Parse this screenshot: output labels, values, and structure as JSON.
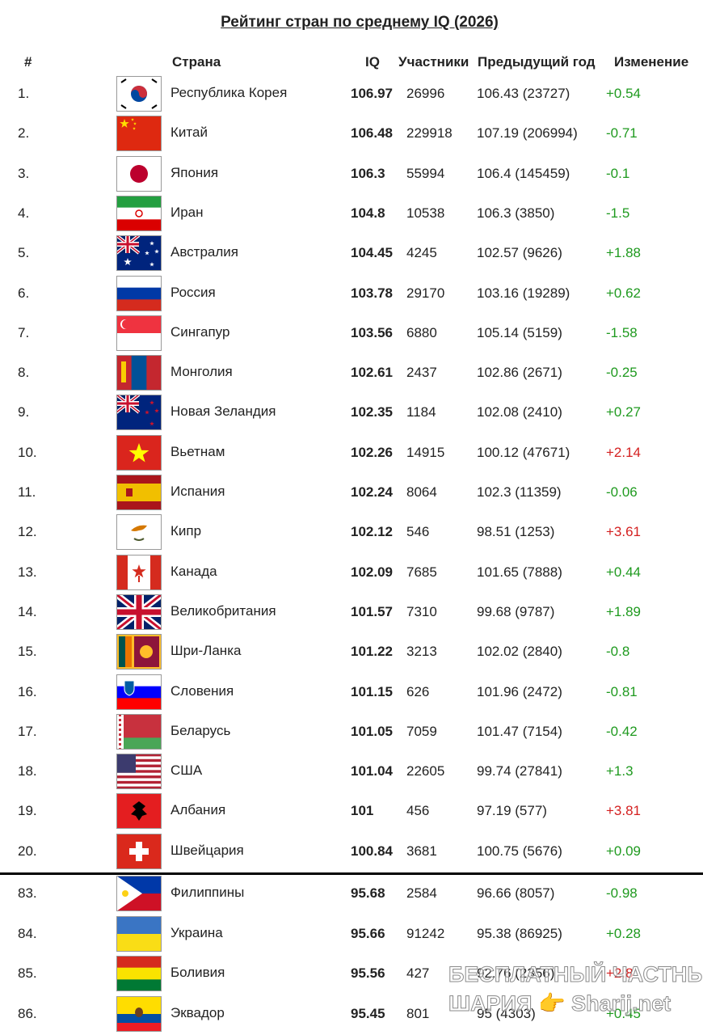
{
  "title": "Рейтинг стран по среднему IQ (2026)",
  "table": {
    "header": [
      "#",
      "Страна",
      "IQ",
      "Участники",
      "Предыдущий год",
      "Изменение"
    ],
    "rows": [
      {
        "rank": "1.",
        "country": "Республика Корея",
        "iq": "106.97",
        "participants": "26996",
        "previous": "106.43 (23727)",
        "change": "+0.54",
        "change_color": "#1f9a1f"
      },
      {
        "rank": "2.",
        "country": "Китай",
        "iq": "106.48",
        "participants": "229918",
        "previous": "107.19 (206994)",
        "change": "-0.71",
        "change_color": "#1f9a1f"
      },
      {
        "rank": "3.",
        "country": "Япония",
        "iq": "106.3",
        "participants": "55994",
        "previous": "106.4 (145459)",
        "change": "-0.1",
        "change_color": "#1f9a1f"
      },
      {
        "rank": "4.",
        "country": "Иран",
        "iq": "104.8",
        "participants": "10538",
        "previous": "106.3 (3850)",
        "change": "-1.5",
        "change_color": "#1f9a1f"
      },
      {
        "rank": "5.",
        "country": "Австралия",
        "iq": "104.45",
        "participants": "4245",
        "previous": "102.57 (9626)",
        "change": "+1.88",
        "change_color": "#1f9a1f"
      },
      {
        "rank": "6.",
        "country": "Россия",
        "iq": "103.78",
        "participants": "29170",
        "previous": "103.16 (19289)",
        "change": "+0.62",
        "change_color": "#1f9a1f"
      },
      {
        "rank": "7.",
        "country": "Сингапур",
        "iq": "103.56",
        "participants": "6880",
        "previous": "105.14 (5159)",
        "change": "-1.58",
        "change_color": "#1f9a1f"
      },
      {
        "rank": "8.",
        "country": "Монголия",
        "iq": "102.61",
        "participants": "2437",
        "previous": "102.86 (2671)",
        "change": "-0.25",
        "change_color": "#1f9a1f"
      },
      {
        "rank": "9.",
        "country": "Новая Зеландия",
        "iq": "102.35",
        "participants": "1184",
        "previous": "102.08 (2410)",
        "change": "+0.27",
        "change_color": "#1f9a1f"
      },
      {
        "rank": "10.",
        "country": "Вьетнам",
        "iq": "102.26",
        "participants": "14915",
        "previous": "100.12 (47671)",
        "change": "+2.14",
        "change_color": "#d42020"
      },
      {
        "rank": "11.",
        "country": "Испания",
        "iq": "102.24",
        "participants": "8064",
        "previous": "102.3 (11359)",
        "change": "-0.06",
        "change_color": "#1f9a1f"
      },
      {
        "rank": "12.",
        "country": "Кипр",
        "iq": "102.12",
        "participants": "546",
        "previous": "98.51 (1253)",
        "change": "+3.61",
        "change_color": "#d42020"
      },
      {
        "rank": "13.",
        "country": "Канада",
        "iq": "102.09",
        "participants": "7685",
        "previous": "101.65 (7888)",
        "change": "+0.44",
        "change_color": "#1f9a1f"
      },
      {
        "rank": "14.",
        "country": "Великобритания",
        "iq": "101.57",
        "participants": "7310",
        "previous": "99.68 (9787)",
        "change": "+1.89",
        "change_color": "#1f9a1f"
      },
      {
        "rank": "15.",
        "country": "Шри-Ланка",
        "iq": "101.22",
        "participants": "3213",
        "previous": "102.02 (2840)",
        "change": "-0.8",
        "change_color": "#1f9a1f"
      },
      {
        "rank": "16.",
        "country": "Словения",
        "iq": "101.15",
        "participants": "626",
        "previous": "101.96 (2472)",
        "change": "-0.81",
        "change_color": "#1f9a1f"
      },
      {
        "rank": "17.",
        "country": "Беларусь",
        "iq": "101.05",
        "participants": "7059",
        "previous": "101.47 (7154)",
        "change": "-0.42",
        "change_color": "#1f9a1f"
      },
      {
        "rank": "18.",
        "country": "США",
        "iq": "101.04",
        "participants": "22605",
        "previous": "99.74 (27841)",
        "change": "+1.3",
        "change_color": "#1f9a1f"
      },
      {
        "rank": "19.",
        "country": "Албания",
        "iq": "101",
        "participants": "456",
        "previous": "97.19 (577)",
        "change": "+3.81",
        "change_color": "#d42020"
      },
      {
        "rank": "20.",
        "country": "Швейцария",
        "iq": "100.84",
        "participants": "3681",
        "previous": "100.75 (5676)",
        "change": "+0.09",
        "change_color": "#1f9a1f"
      },
      {
        "rank": "83.",
        "country": "Филиппины",
        "iq": "95.68",
        "participants": "2584",
        "previous": "96.66 (8057)",
        "change": "-0.98",
        "change_color": "#1f9a1f"
      },
      {
        "rank": "84.",
        "country": "Украина",
        "iq": "95.66",
        "participants": "91242",
        "previous": "95.38 (86925)",
        "change": "+0.28",
        "change_color": "#1f9a1f"
      },
      {
        "rank": "85.",
        "country": "Боливия",
        "iq": "95.56",
        "participants": "427",
        "previous": "92.76 (2356)",
        "change": "+2.8",
        "change_color": "#d42020"
      },
      {
        "rank": "86.",
        "country": "Эквадор",
        "iq": "95.45",
        "participants": "801",
        "previous": "95 (4303)",
        "change": "+0.45",
        "change_color": "#1f9a1f"
      }
    ]
  },
  "watermark": [
    "БЕСПЛАТНЫЙ ЧАСТНЫЙ",
    "ШАРИЯ 👉 Sharij.net"
  ]
}
